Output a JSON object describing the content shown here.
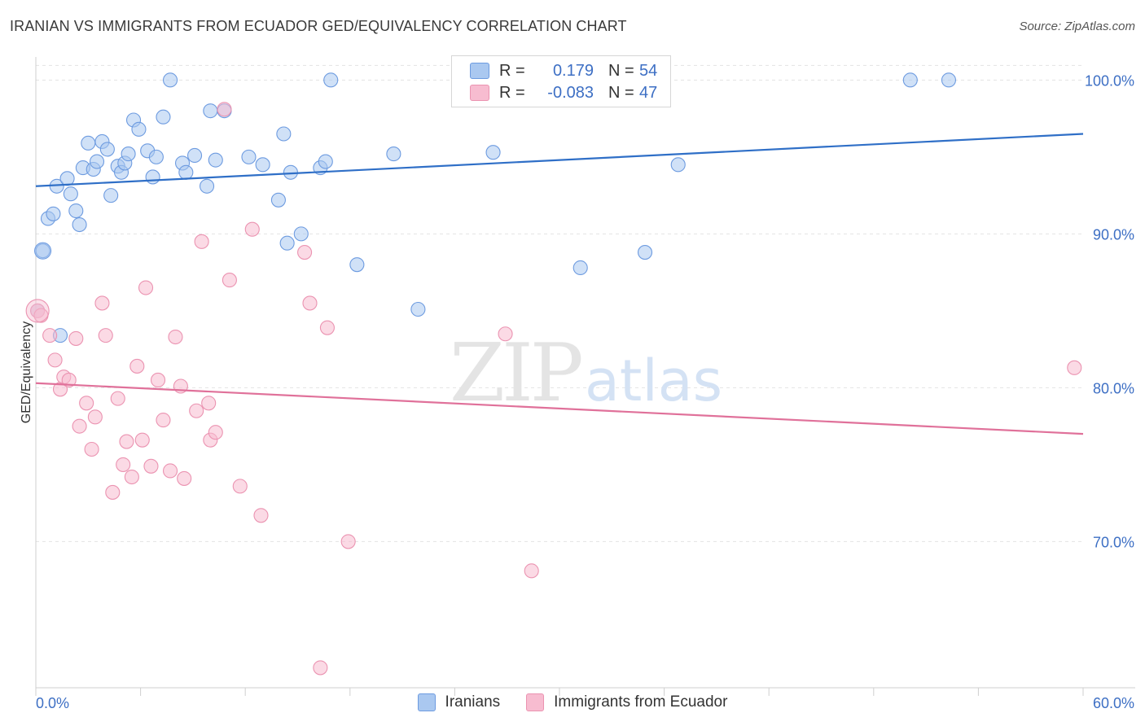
{
  "title": "IRANIAN VS IMMIGRANTS FROM ECUADOR GED/EQUIVALENCY CORRELATION CHART",
  "source": "Source: ZipAtlas.com",
  "watermark": {
    "zip": "ZIP",
    "atlas": "atlas"
  },
  "legend": {
    "r_label": "R =",
    "n_label": "N =",
    "rows": [
      {
        "name": "Iranians",
        "r": "0.179",
        "n": "54"
      },
      {
        "name": "Immigrants from Ecuador",
        "r": "-0.083",
        "n": "47"
      }
    ]
  },
  "colors": {
    "blue_fill": "#aac8f0",
    "blue_stroke": "#6d9be0",
    "blue_line": "#2f6fc7",
    "pink_fill": "#f7bcd0",
    "pink_stroke": "#eb93b1",
    "pink_line": "#e0719a",
    "axis_text": "#3d6fc4",
    "grid": "#e2e2e2"
  },
  "chart_data": {
    "type": "scatter",
    "title": "IRANIAN VS IMMIGRANTS FROM ECUADOR GED/EQUIVALENCY CORRELATION CHART",
    "xlabel": "",
    "ylabel": "GED/Equivalency",
    "xlim": [
      0,
      60
    ],
    "ylim": [
      60.5,
      101.5
    ],
    "x_tick_labels": [
      "0.0%",
      "60.0%"
    ],
    "y_ticks": [
      70,
      80,
      90,
      100
    ],
    "y_tick_labels": [
      "70.0%",
      "80.0%",
      "90.0%",
      "100.0%"
    ],
    "grid": true,
    "legend_position": "top-center",
    "series": [
      {
        "name": "Iranians",
        "color": "blue",
        "trend": {
          "x": [
            0,
            60
          ],
          "y": [
            93.1,
            96.5
          ]
        },
        "points": [
          [
            0.1,
            85.0
          ],
          [
            0.4,
            88.9
          ],
          [
            0.7,
            91.0
          ],
          [
            1.0,
            91.3
          ],
          [
            1.2,
            93.1
          ],
          [
            1.4,
            83.4
          ],
          [
            1.8,
            93.6
          ],
          [
            2.0,
            92.6
          ],
          [
            2.3,
            91.5
          ],
          [
            2.5,
            90.6
          ],
          [
            2.7,
            94.3
          ],
          [
            3.0,
            95.9
          ],
          [
            3.3,
            94.2
          ],
          [
            3.5,
            94.7
          ],
          [
            3.8,
            96.0
          ],
          [
            4.1,
            95.5
          ],
          [
            4.3,
            92.5
          ],
          [
            4.7,
            94.4
          ],
          [
            4.9,
            94.0
          ],
          [
            5.1,
            94.6
          ],
          [
            5.3,
            95.2
          ],
          [
            5.6,
            97.4
          ],
          [
            5.9,
            96.8
          ],
          [
            6.4,
            95.4
          ],
          [
            6.7,
            93.7
          ],
          [
            6.9,
            95.0
          ],
          [
            7.3,
            97.6
          ],
          [
            7.7,
            100.0
          ],
          [
            8.4,
            94.6
          ],
          [
            8.6,
            94.0
          ],
          [
            9.1,
            95.1
          ],
          [
            9.8,
            93.1
          ],
          [
            10.0,
            98.0
          ],
          [
            10.3,
            94.8
          ],
          [
            10.8,
            98.0
          ],
          [
            12.2,
            95.0
          ],
          [
            13.0,
            94.5
          ],
          [
            13.9,
            92.2
          ],
          [
            14.2,
            96.5
          ],
          [
            14.4,
            89.4
          ],
          [
            14.6,
            94.0
          ],
          [
            15.2,
            90.0
          ],
          [
            16.3,
            94.3
          ],
          [
            16.6,
            94.7
          ],
          [
            16.9,
            100.0
          ],
          [
            18.4,
            88.0
          ],
          [
            20.5,
            95.2
          ],
          [
            21.9,
            85.1
          ],
          [
            26.2,
            95.3
          ],
          [
            31.2,
            87.8
          ],
          [
            34.9,
            88.8
          ],
          [
            36.8,
            94.5
          ],
          [
            50.1,
            100.0
          ],
          [
            52.3,
            100.0
          ]
        ]
      },
      {
        "name": "Immigrants from Ecuador",
        "color": "pink",
        "trend": {
          "x": [
            0,
            60
          ],
          "y": [
            80.3,
            77.0
          ]
        },
        "points": [
          [
            0.1,
            85.0
          ],
          [
            0.3,
            84.7
          ],
          [
            0.8,
            83.4
          ],
          [
            1.1,
            81.8
          ],
          [
            1.4,
            79.9
          ],
          [
            1.6,
            80.7
          ],
          [
            1.9,
            80.5
          ],
          [
            2.3,
            83.2
          ],
          [
            2.5,
            77.5
          ],
          [
            2.9,
            79.0
          ],
          [
            3.2,
            76.0
          ],
          [
            3.4,
            78.1
          ],
          [
            3.8,
            85.5
          ],
          [
            4.0,
            83.4
          ],
          [
            4.4,
            73.2
          ],
          [
            4.7,
            79.3
          ],
          [
            5.0,
            75.0
          ],
          [
            5.2,
            76.5
          ],
          [
            5.5,
            74.2
          ],
          [
            5.8,
            81.4
          ],
          [
            6.1,
            76.6
          ],
          [
            6.3,
            86.5
          ],
          [
            6.6,
            74.9
          ],
          [
            7.0,
            80.5
          ],
          [
            7.3,
            77.9
          ],
          [
            7.7,
            74.6
          ],
          [
            8.0,
            83.3
          ],
          [
            8.3,
            80.1
          ],
          [
            8.5,
            74.1
          ],
          [
            9.2,
            78.5
          ],
          [
            9.5,
            89.5
          ],
          [
            9.9,
            79.0
          ],
          [
            10.0,
            76.6
          ],
          [
            10.3,
            77.1
          ],
          [
            10.8,
            98.1
          ],
          [
            11.1,
            87.0
          ],
          [
            11.7,
            73.6
          ],
          [
            12.4,
            90.3
          ],
          [
            12.9,
            71.7
          ],
          [
            15.4,
            88.8
          ],
          [
            15.7,
            85.5
          ],
          [
            16.3,
            61.8
          ],
          [
            16.7,
            83.9
          ],
          [
            17.9,
            70.0
          ],
          [
            26.9,
            83.5
          ],
          [
            28.4,
            68.1
          ],
          [
            59.5,
            81.3
          ]
        ]
      }
    ]
  }
}
